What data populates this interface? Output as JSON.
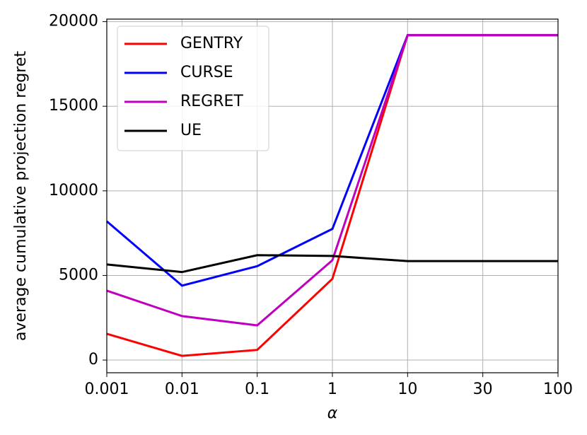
{
  "chart_data": {
    "type": "line",
    "categories": [
      "0.001",
      "0.01",
      "0.1",
      "1",
      "10",
      "30",
      "100"
    ],
    "series": [
      {
        "name": "GENTRY",
        "color": "#ff0000",
        "values": [
          1550,
          250,
          600,
          4800,
          19200,
          19200,
          19200
        ]
      },
      {
        "name": "CURSE",
        "color": "#0000ff",
        "values": [
          8200,
          4400,
          5550,
          7750,
          19200,
          19200,
          19200
        ]
      },
      {
        "name": "REGRET",
        "color": "#bf00bf",
        "values": [
          4100,
          2600,
          2050,
          5900,
          19200,
          19200,
          19200
        ]
      },
      {
        "name": "UE",
        "color": "#000000",
        "values": [
          5650,
          5200,
          6200,
          6150,
          5850,
          5850,
          5850
        ]
      }
    ],
    "x_label": "α",
    "y_label": "average cumulative projection regret",
    "ylim": [
      -750,
      20150
    ],
    "yticks": [
      0,
      5000,
      10000,
      15000,
      20000
    ],
    "grid": true,
    "legend": "upper-left"
  }
}
